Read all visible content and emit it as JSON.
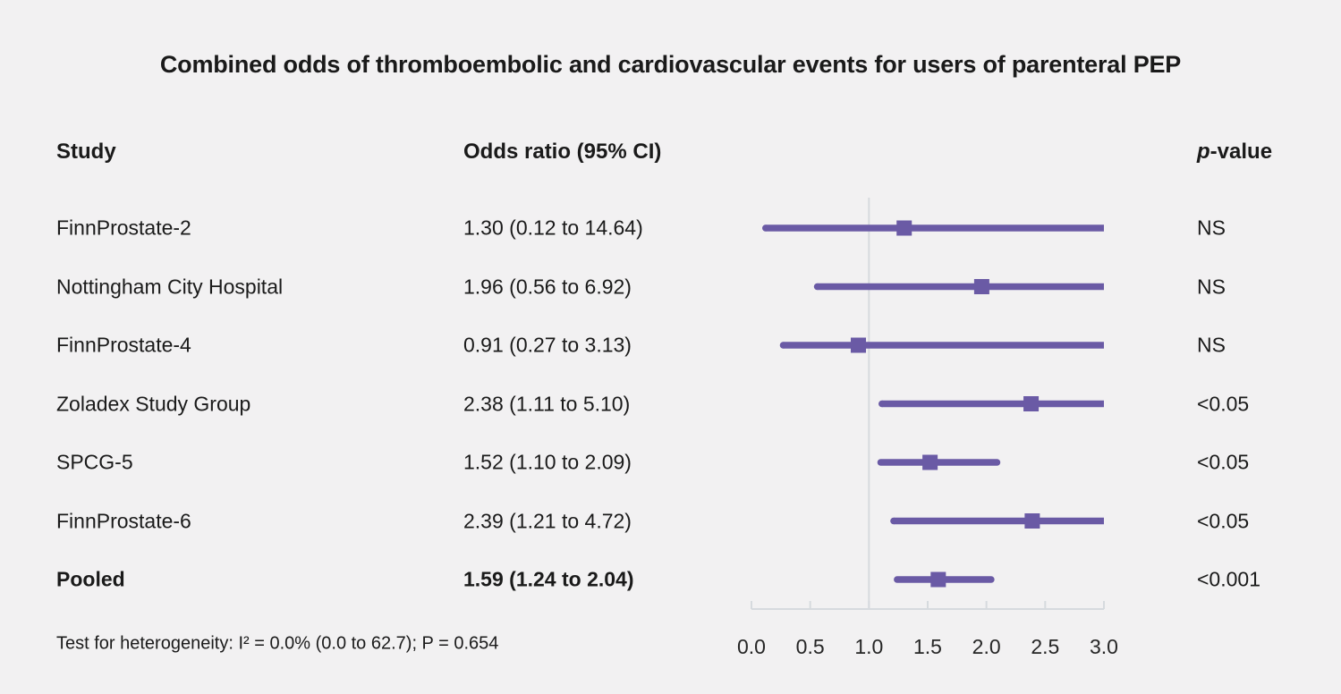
{
  "chart_data": {
    "type": "forest",
    "title": "Combined odds of thromboembolic and cardiovascular events for users of parenteral PEP",
    "columns": {
      "study": "Study",
      "odds_ratio": "Odds ratio (95% CI)",
      "p_italic": "p",
      "p_rest": "-value"
    },
    "rows": [
      {
        "study": "FinnProstate-2",
        "or_text": "1.30 (0.12 to 14.64)",
        "estimate": 1.3,
        "ci_low": 0.12,
        "ci_high": 14.64,
        "p_value": "NS",
        "bold": false
      },
      {
        "study": "Nottingham City Hospital",
        "or_text": "1.96 (0.56 to 6.92)",
        "estimate": 1.96,
        "ci_low": 0.56,
        "ci_high": 6.92,
        "p_value": "NS",
        "bold": false
      },
      {
        "study": "FinnProstate-4",
        "or_text": "0.91 (0.27 to 3.13)",
        "estimate": 0.91,
        "ci_low": 0.27,
        "ci_high": 3.13,
        "p_value": "NS",
        "bold": false
      },
      {
        "study": "Zoladex Study Group",
        "or_text": "2.38 (1.11 to 5.10)",
        "estimate": 2.38,
        "ci_low": 1.11,
        "ci_high": 5.1,
        "p_value": "<0.05",
        "bold": false
      },
      {
        "study": "SPCG-5",
        "or_text": "1.52 (1.10 to 2.09)",
        "estimate": 1.52,
        "ci_low": 1.1,
        "ci_high": 2.09,
        "p_value": "<0.05",
        "bold": false
      },
      {
        "study": "FinnProstate-6",
        "or_text": "2.39 (1.21 to 4.72)",
        "estimate": 2.39,
        "ci_low": 1.21,
        "ci_high": 4.72,
        "p_value": "<0.05",
        "bold": false
      },
      {
        "study": "Pooled",
        "or_text": "1.59 (1.24 to 2.04)",
        "estimate": 1.59,
        "ci_low": 1.24,
        "ci_high": 2.04,
        "p_value": "<0.001",
        "bold": true
      }
    ],
    "axis": {
      "min": 0.0,
      "max": 3.0,
      "tick_labels": [
        "0.0",
        "0.5",
        "1.0",
        "1.5",
        "2.0",
        "2.5",
        "3.0"
      ],
      "reference_line": 1.0,
      "clip_high_at": 3.0
    },
    "heterogeneity_note": "Test for heterogeneity: I² = 0.0% (0.0 to 62.7); P = 0.654",
    "colors": {
      "marker": "#6a5aa5",
      "axis_line": "#d6dade",
      "background": "#f2f1f2",
      "text": "#1a1a1a"
    }
  }
}
